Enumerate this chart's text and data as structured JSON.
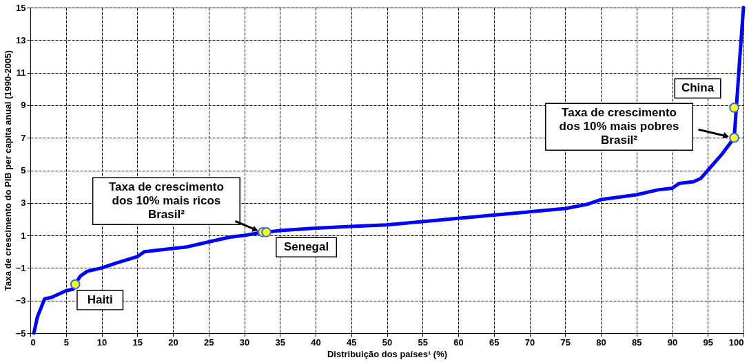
{
  "chart_data": {
    "type": "line",
    "xlabel": "Distribuição dos países¹ (%)",
    "ylabel": "Taxa de crescimento do PIB per capita anual (1990-2005)",
    "series": [
      {
        "color": "#0000ff",
        "x": [
          0.5,
          1,
          2,
          3,
          5,
          6,
          6.3,
          7,
          8,
          10,
          12,
          15,
          16,
          20,
          22,
          25,
          28,
          30,
          32,
          32.6,
          33.1,
          35,
          40,
          45,
          50,
          55,
          60,
          65,
          70,
          75,
          78,
          80,
          85,
          88,
          90,
          91,
          93,
          94,
          95,
          96,
          97,
          98.7,
          99,
          99.5,
          100
        ],
        "values": [
          -5,
          -4,
          -2.9,
          -2.8,
          -2.4,
          -2.3,
          -2.0,
          -1.5,
          -1.2,
          -1.0,
          -0.7,
          -0.3,
          0,
          0.2,
          0.3,
          0.6,
          0.9,
          1.0,
          1.15,
          1.2,
          1.2,
          1.3,
          1.45,
          1.55,
          1.65,
          1.85,
          2.05,
          2.25,
          2.45,
          2.65,
          2.9,
          3.2,
          3.5,
          3.8,
          3.9,
          4.2,
          4.3,
          4.5,
          5.0,
          5.5,
          6.0,
          7.0,
          8.85,
          12,
          15
        ]
      },
      {
        "type": "scatter",
        "marker": "circle",
        "color": "#ffff00",
        "x": [
          6.3,
          32.6,
          33.1,
          98.7,
          98.7
        ],
        "values": [
          -2.0,
          1.2,
          1.2,
          8.85,
          7.0
        ]
      }
    ],
    "annotations": [
      {
        "text": "Haiti",
        "x": 6.3,
        "y": -2.0
      },
      "Taxa de crescimento\ndos 10% mais ricos\nBrasil²",
      {
        "text": "Senegal",
        "x": 33.1,
        "y": 1.2
      },
      {
        "text": "China",
        "x": 98.7,
        "y": 8.85
      },
      "Taxa de crescimento\ndos 10% mais pobres\nBrasil²"
    ],
    "xlim": [
      0,
      100
    ],
    "xticks": [
      0,
      5,
      10,
      15,
      20,
      25,
      30,
      35,
      40,
      45,
      50,
      55,
      60,
      65,
      70,
      75,
      80,
      85,
      90,
      95,
      100
    ],
    "ylim": [
      -5,
      15
    ],
    "yticks": [
      -5,
      -3,
      -1,
      1,
      3,
      5,
      7,
      9,
      11,
      13,
      15
    ],
    "grid": true,
    "line_style": "solid"
  }
}
